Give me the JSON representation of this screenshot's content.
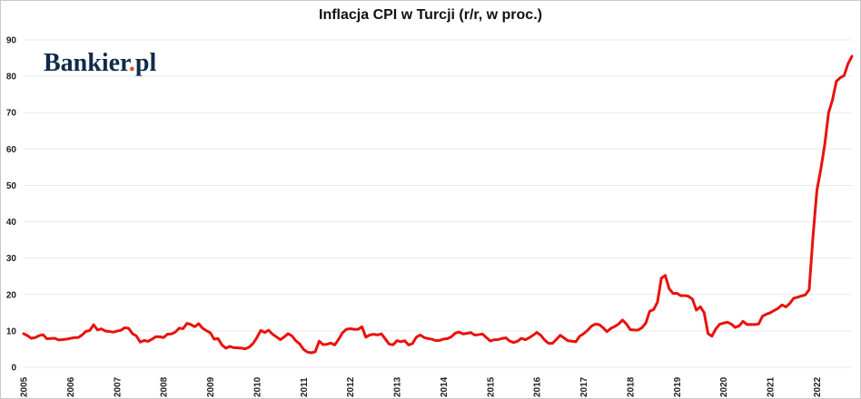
{
  "title": "Inflacja CPI w Turcji (r/r, w proc.)",
  "logo": {
    "name": "Bankier",
    "dot": ".",
    "suffix": "pl"
  },
  "colors": {
    "line": "#e8120b",
    "grid": "#e9e9e9",
    "tick_text": "#1f1f1f",
    "title_text": "#111111",
    "logo_navy": "#0e2b4a",
    "logo_dot": "#e8500b",
    "frame_border": "#c9c9c9"
  },
  "chart_data": {
    "type": "line",
    "title": "Inflacja CPI w Turcji (r/r, w proc.)",
    "xlabel": "",
    "ylabel": "",
    "ylim": [
      0,
      90
    ],
    "y_ticks": [
      0,
      10,
      20,
      30,
      40,
      50,
      60,
      70,
      80,
      90
    ],
    "grid": "horizontal",
    "legend": "none",
    "frequency": "monthly",
    "start": "2005-01",
    "end": "2022-10",
    "x_tick_labels": [
      "2005",
      "2006",
      "2007",
      "2008",
      "2009",
      "2010",
      "2011",
      "2012",
      "2013",
      "2014",
      "2015",
      "2016",
      "2017",
      "2018",
      "2019",
      "2020",
      "2021",
      "2022"
    ],
    "series": [
      {
        "name": "Inflacja CPI w Turcji r/r (proc.)",
        "color": "#e8120b",
        "values": [
          9.23,
          8.69,
          7.94,
          8.18,
          8.7,
          8.95,
          7.82,
          7.91,
          7.99,
          7.52,
          7.61,
          7.72,
          7.93,
          8.15,
          8.16,
          8.83,
          9.86,
          10.12,
          11.69,
          10.26,
          10.55,
          9.98,
          9.86,
          9.65,
          9.93,
          10.16,
          10.86,
          10.72,
          9.23,
          8.6,
          6.9,
          7.39,
          7.12,
          7.7,
          8.4,
          8.39,
          8.17,
          9.1,
          9.15,
          9.66,
          10.74,
          10.61,
          12.06,
          11.77,
          11.13,
          11.99,
          10.76,
          10.06,
          9.5,
          7.73,
          7.89,
          6.13,
          5.24,
          5.73,
          5.39,
          5.33,
          5.27,
          5.08,
          5.53,
          6.53,
          8.19,
          10.13,
          9.56,
          10.19,
          9.1,
          8.37,
          7.58,
          8.33,
          9.24,
          8.62,
          7.29,
          6.4,
          4.9,
          4.16,
          3.99,
          4.26,
          7.17,
          6.24,
          6.31,
          6.65,
          6.15,
          7.66,
          9.48,
          10.45,
          10.61,
          10.43,
          10.43,
          11.14,
          8.28,
          8.87,
          9.07,
          8.88,
          9.19,
          7.8,
          6.37,
          6.16,
          7.31,
          7.03,
          7.29,
          6.13,
          6.51,
          8.3,
          8.88,
          8.17,
          7.88,
          7.71,
          7.32,
          7.4,
          7.75,
          7.89,
          8.39,
          9.38,
          9.66,
          9.16,
          9.32,
          9.54,
          8.86,
          8.96,
          9.15,
          8.17,
          7.24,
          7.55,
          7.61,
          7.91,
          8.09,
          7.2,
          6.81,
          7.14,
          7.95,
          7.58,
          8.1,
          8.81,
          9.58,
          8.78,
          7.46,
          6.57,
          6.58,
          7.64,
          8.79,
          8.05,
          7.28,
          7.16,
          7.0,
          8.53,
          9.22,
          10.13,
          11.29,
          11.87,
          11.72,
          10.9,
          9.79,
          10.68,
          11.2,
          11.9,
          12.98,
          11.92,
          10.35,
          10.26,
          10.23,
          10.85,
          12.15,
          15.39,
          15.85,
          17.9,
          24.52,
          25.24,
          21.62,
          20.3,
          20.35,
          19.67,
          19.71,
          19.5,
          18.71,
          15.72,
          16.65,
          15.01,
          9.26,
          8.55,
          10.56,
          11.84,
          12.15,
          12.37,
          11.86,
          10.94,
          11.39,
          12.62,
          11.76,
          11.77,
          11.75,
          11.89,
          14.03,
          14.6,
          14.97,
          15.61,
          16.19,
          17.14,
          16.59,
          17.53,
          18.95,
          19.25,
          19.58,
          19.89,
          21.31,
          36.08,
          48.69,
          54.44,
          61.14,
          69.97,
          73.5,
          78.62,
          79.6,
          80.21,
          83.45,
          85.51
        ]
      }
    ]
  }
}
